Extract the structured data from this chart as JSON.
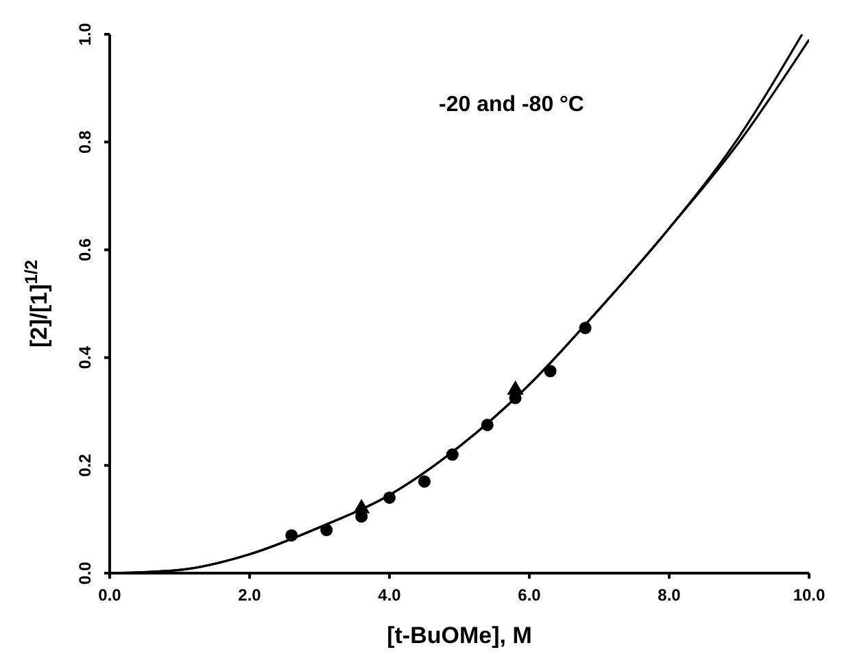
{
  "chart_data": {
    "type": "scatter",
    "xlabel": "[t-BuOMe], M",
    "ylabel": "[2]/[1]$^{1/2}$",
    "annotations": [
      "-20 and -80 °C"
    ],
    "xlim": [
      0,
      10
    ],
    "ylim": [
      0,
      1
    ],
    "xticks": [
      {
        "value": 0,
        "label": "0.0"
      },
      {
        "value": 2,
        "label": "2.0"
      },
      {
        "value": 4,
        "label": "4.0"
      },
      {
        "value": 6,
        "label": "6.0"
      },
      {
        "value": 8,
        "label": "8.0"
      },
      {
        "value": 10,
        "label": "10.0"
      }
    ],
    "yticks": [
      {
        "value": 0,
        "label": "0.0"
      },
      {
        "value": 0.2,
        "label": "0.2"
      },
      {
        "value": 0.4,
        "label": "0.4"
      },
      {
        "value": 0.6,
        "label": "0.6"
      },
      {
        "value": 0.8,
        "label": "0.8"
      },
      {
        "value": 1,
        "label": "1.0"
      }
    ],
    "grid": false,
    "series": [
      {
        "marker": "circle",
        "color": "#000000",
        "x": [
          2.6,
          3.1,
          3.6,
          4.0,
          4.5,
          4.9,
          5.4,
          5.8,
          6.3,
          6.8
        ],
        "values": [
          0.07,
          0.08,
          0.105,
          0.14,
          0.17,
          0.22,
          0.275,
          0.325,
          0.375,
          0.455
        ]
      },
      {
        "marker": "triangle",
        "color": "#000000",
        "x": [
          3.6,
          5.8
        ],
        "values": [
          0.12,
          0.34
        ]
      },
      {
        "type": "line",
        "marker": "none",
        "line_style": "solid",
        "color": "#000000",
        "x": [
          0,
          1,
          2,
          3,
          4,
          5,
          6,
          7,
          8,
          9,
          9.9
        ],
        "values": [
          0,
          0.006,
          0.035,
          0.085,
          0.145,
          0.235,
          0.35,
          0.49,
          0.64,
          0.81,
          1.0
        ]
      },
      {
        "type": "line",
        "marker": "none",
        "line_style": "solid",
        "color": "#000000",
        "x": [
          0,
          1,
          2,
          3,
          4,
          5,
          6,
          7,
          8,
          9,
          10
        ],
        "values": [
          0,
          0.006,
          0.035,
          0.085,
          0.145,
          0.235,
          0.35,
          0.49,
          0.64,
          0.8,
          0.99
        ]
      }
    ]
  }
}
